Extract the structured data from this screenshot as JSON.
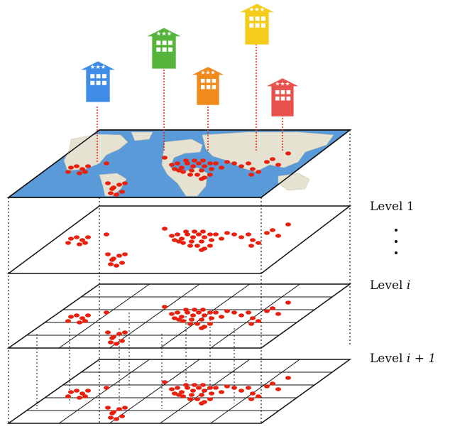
{
  "labels": {
    "level_1": "Level 1",
    "level_i_prefix": "Level ",
    "level_i_var": "i",
    "level_i1_prefix": "Level ",
    "level_i1_var": "i + 1"
  },
  "colors": {
    "ocean": "#5b9ad8",
    "land": "#e8e4d8",
    "poi": "#e8210f",
    "leader_line": "#e8210f",
    "hotel_blue": "#3f8de6",
    "hotel_green": "#56b33c",
    "hotel_orange": "#f08a1c",
    "hotel_yellow": "#f4cc1c",
    "hotel_red": "#e8524d"
  },
  "icons": [
    "hotel-icon-blue",
    "hotel-icon-green",
    "hotel-icon-orange",
    "hotel-icon-yellow",
    "hotel-icon-red"
  ]
}
